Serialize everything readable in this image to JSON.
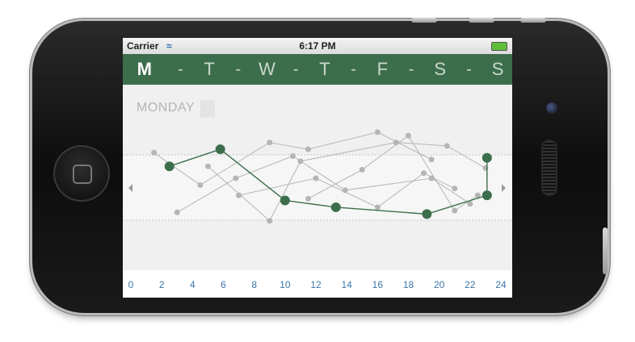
{
  "status_bar": {
    "carrier": "Carrier",
    "time": "6:17 PM"
  },
  "days": [
    "M",
    "T",
    "W",
    "T",
    "F",
    "S",
    "S"
  ],
  "separator": "-",
  "selected_day": "MONDAY",
  "chart_data": {
    "type": "line",
    "x_ticks": [
      "0",
      "2",
      "4",
      "6",
      "8",
      "10",
      "12",
      "14",
      "16",
      "18",
      "20",
      "22",
      "24"
    ],
    "xlim": [
      0,
      24
    ],
    "series": [
      {
        "highlight": true,
        "x": [
          2.5,
          5.8,
          10.0,
          13.3,
          19.2,
          23.1,
          23.1
        ],
        "y": [
          6.2,
          7.2,
          4.2,
          3.8,
          3.4,
          4.5,
          6.7
        ]
      },
      {
        "highlight": false,
        "x": [
          1.5,
          4.5,
          9.0,
          11.5,
          16.0,
          19.5
        ],
        "y": [
          7.0,
          5.1,
          7.6,
          7.2,
          8.2,
          6.6
        ]
      },
      {
        "highlight": false,
        "x": [
          3.0,
          6.8,
          10.5,
          13.9,
          19.5,
          22.0
        ],
        "y": [
          3.5,
          5.5,
          6.8,
          4.8,
          5.5,
          4.0
        ]
      },
      {
        "highlight": false,
        "x": [
          5.0,
          9.0,
          11.0,
          17.2,
          20.5,
          23.0
        ],
        "y": [
          6.2,
          3.0,
          6.5,
          7.6,
          7.4,
          6.1
        ]
      },
      {
        "highlight": false,
        "x": [
          7.0,
          12.0,
          16.0,
          19.0,
          21.0
        ],
        "y": [
          4.5,
          5.5,
          3.8,
          5.8,
          4.9
        ]
      },
      {
        "highlight": false,
        "x": [
          11.5,
          15.0,
          18.0,
          21.0,
          22.5
        ],
        "y": [
          4.3,
          6.0,
          8.0,
          3.6,
          4.5
        ]
      }
    ],
    "colors": {
      "highlight": "#3d6e4b",
      "other": "#b5b5b5"
    }
  }
}
